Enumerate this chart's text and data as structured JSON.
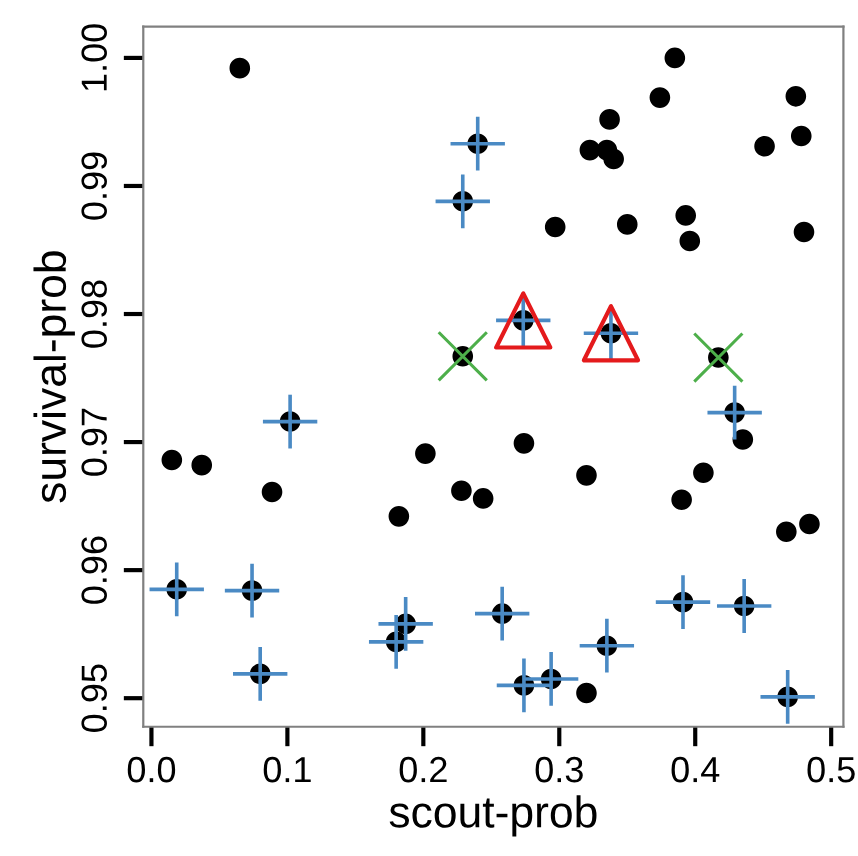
{
  "chart_data": {
    "type": "scatter",
    "xlabel": "scout-prob",
    "ylabel": "survival-prob",
    "xlim": [
      -0.006,
      0.509
    ],
    "ylim": [
      0.94777,
      1.00245
    ],
    "xticks": [
      {
        "value": 0,
        "label": "0.0"
      },
      {
        "value": 0.1,
        "label": "0.1"
      },
      {
        "value": 0.2,
        "label": "0.2"
      },
      {
        "value": 0.3,
        "label": "0.3"
      },
      {
        "value": 0.4,
        "label": "0.4"
      },
      {
        "value": 0.5,
        "label": "0.5"
      }
    ],
    "yticks": [
      {
        "value": 0.95,
        "label": "0.95"
      },
      {
        "value": 0.96,
        "label": "0.96"
      },
      {
        "value": 0.97,
        "label": "0.97"
      },
      {
        "value": 0.98,
        "label": "0.98"
      },
      {
        "value": 0.99,
        "label": "0.99"
      },
      {
        "value": 1.0,
        "label": "1.00"
      }
    ],
    "grid": false,
    "legend": false,
    "series": [
      {
        "color": "#000000",
        "marker": "circle",
        "x": [
          0.065,
          0.385,
          0.374,
          0.337,
          0.474,
          0.3225,
          0.335,
          0.34,
          0.451,
          0.478,
          0.297,
          0.35,
          0.393,
          0.396,
          0.48,
          0.2735,
          0.338,
          0.417,
          0.229,
          0.24,
          0.229,
          0.102,
          0.015,
          0.037,
          0.0887,
          0.2015,
          0.182,
          0.228,
          0.244,
          0.0186,
          0.074,
          0.08,
          0.187,
          0.18,
          0.258,
          0.274,
          0.32,
          0.406,
          0.39,
          0.435,
          0.467,
          0.484,
          0.32,
          0.429,
          0.335,
          0.391,
          0.436,
          0.274,
          0.294,
          0.468
        ],
        "values": [
          0.9992,
          1.0,
          0.9969,
          0.9952,
          0.997,
          0.9928,
          0.9928,
          0.9921,
          0.9931,
          0.9939,
          0.9868,
          0.987,
          0.9877,
          0.9857,
          0.9864,
          0.9795,
          0.9785,
          0.9766,
          0.9767,
          0.9933,
          0.9888,
          0.9716,
          0.9686,
          0.9682,
          0.9661,
          0.9691,
          0.9642,
          0.9662,
          0.9656,
          0.9585,
          0.9584,
          0.9519,
          0.9558,
          0.9544,
          0.9566,
          0.9699,
          0.9674,
          0.9676,
          0.9655,
          0.9702,
          0.963,
          0.9636,
          0.9504,
          0.9723,
          0.9541,
          0.9575,
          0.9572,
          0.951,
          0.9515,
          0.9501
        ],
        "errors": [
          null,
          null,
          null,
          null,
          null,
          null,
          null,
          null,
          null,
          null,
          null,
          null,
          null,
          null,
          null,
          0.0021,
          0.0021,
          null,
          null,
          0.0021,
          0.0021,
          0.0021,
          null,
          null,
          null,
          null,
          null,
          null,
          null,
          0.0021,
          0.0021,
          0.0021,
          0.0021,
          0.0021,
          0.0021,
          null,
          null,
          null,
          null,
          null,
          null,
          null,
          null,
          0.0021,
          0.0021,
          0.0021,
          0.0021,
          0.0021,
          0.0021,
          0.0021
        ],
        "xerrors": [
          null,
          null,
          null,
          null,
          null,
          null,
          null,
          null,
          null,
          null,
          null,
          null,
          null,
          null,
          null,
          0.02,
          0.02,
          null,
          null,
          0.02,
          0.02,
          0.02,
          null,
          null,
          null,
          null,
          null,
          null,
          null,
          0.02,
          0.02,
          0.02,
          0.02,
          0.02,
          0.02,
          null,
          null,
          null,
          null,
          null,
          null,
          null,
          null,
          0.02,
          0.02,
          0.02,
          0.02,
          0.02,
          0.02,
          0.02
        ]
      },
      {
        "color": "#e41a1c",
        "marker": "triangle",
        "x": [
          0.2735,
          0.338
        ],
        "values": [
          0.9795,
          0.9785
        ]
      },
      {
        "color": "#4daf4a",
        "marker": "cross",
        "x": [
          0.417,
          0.229
        ],
        "values": [
          0.9766,
          0.9767
        ]
      }
    ]
  }
}
